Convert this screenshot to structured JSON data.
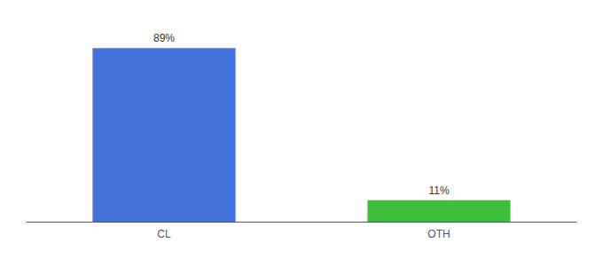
{
  "chart_data": {
    "type": "bar",
    "categories": [
      "CL",
      "OTH"
    ],
    "values": [
      89,
      11
    ],
    "value_labels": [
      "89%",
      "11%"
    ],
    "colors": [
      "#4472db",
      "#3dbf3d"
    ],
    "ylim": [
      0,
      100
    ],
    "data_labels": true,
    "tick_labels": "x",
    "grid": false
  }
}
